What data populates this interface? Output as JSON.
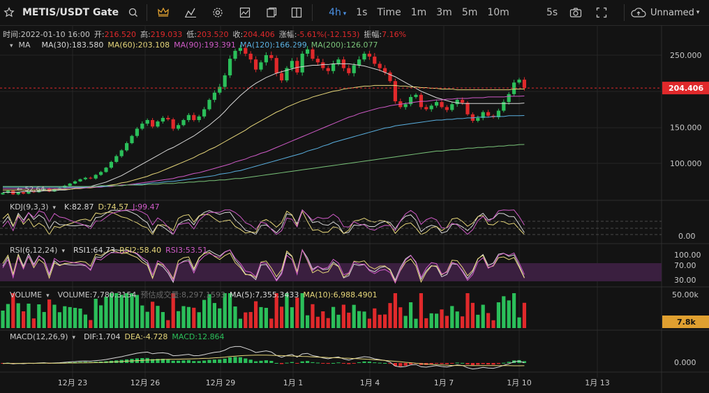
{
  "toolbar": {
    "symbol": "METIS/USDT Gate",
    "timeframes": [
      "4h",
      "1s",
      "Time",
      "1m",
      "3m",
      "5m",
      "10m"
    ],
    "active_timeframe": "4h",
    "interval_select": "5s",
    "layout_name": "Unnamed"
  },
  "ohlc_bar": {
    "time": "时间:2022-01-10 16:00",
    "open_label": "开:",
    "open": "216.520",
    "high_label": "高:",
    "high": "219.033",
    "low_label": "低:",
    "low": "203.520",
    "close_label": "收:",
    "close": "204.406",
    "change_label": "涨幅:",
    "change": "-5.61%(-12.153)",
    "amp_label": "振幅:",
    "amp": "7.16%"
  },
  "ma_legend": {
    "name": "MA",
    "items": [
      {
        "label": "MA(30):183.580",
        "color": "#d8d8d8"
      },
      {
        "label": "MA(60):203.108",
        "color": "#e6d67a"
      },
      {
        "label": "MA(90):193.391",
        "color": "#d05bc8"
      },
      {
        "label": "MA(120):166.299",
        "color": "#5ab0e0"
      },
      {
        "label": "MA(200):126.077",
        "color": "#7ac47a"
      }
    ]
  },
  "kdj_legend": {
    "name": "KDJ(9,3,3)",
    "k": "K:82.87",
    "d": "D:74.57",
    "j": "J:99.47"
  },
  "rsi_legend": {
    "name": "RSI(6,12,24)",
    "r1": "RSI1:64.73",
    "r2": "RSI2:58.40",
    "r3": "RSI3:53.51"
  },
  "vol_legend": {
    "name": "VOLUME",
    "vol": "VOLUME:7,780.3154",
    "est": "预估成交量:8,297.1593",
    "ma5": "MA(5):7,355.3433",
    "ma10": "MA(10):6,988.4901"
  },
  "macd_legend": {
    "name": "MACD(12,26,9)",
    "dif": "DIF:1.704",
    "dea": "DEA:-4.728",
    "macd": "MACD:12.864"
  },
  "axes": {
    "price_ticks": [
      "250.000",
      "204.406",
      "150.000",
      "100.000"
    ],
    "last_price": "204.406",
    "kdj_tick": "0.00",
    "rsi_ticks": [
      "100.00",
      "70.00",
      "30.00"
    ],
    "vol_tick": "50.00k",
    "vol_last": "7.8k",
    "macd_tick": "0.000",
    "x_ticks": [
      "12月 23",
      "12月 26",
      "12月 29",
      "1月 1",
      "1月 4",
      "1月 7",
      "1月 10",
      "1月 13"
    ],
    "low_marker": "52.64"
  },
  "colors": {
    "up": "#2bbf5a",
    "down": "#e0292b",
    "bg": "#131313",
    "grid": "#262626",
    "accent": "#4a90e2"
  },
  "chart_data": {
    "type": "candlestick",
    "x_tick_labels": [
      "12月 23",
      "12月 26",
      "12月 29",
      "1月 1",
      "1月 4",
      "1月 7",
      "1月 10",
      "1月 13"
    ],
    "price_range": [
      50,
      270
    ],
    "last_close": 204.406,
    "close": [
      59,
      62,
      57,
      60,
      58,
      61,
      60,
      63,
      65,
      61,
      64,
      66,
      69,
      72,
      75,
      78,
      80,
      79,
      84,
      88,
      94,
      102,
      110,
      118,
      128,
      138,
      148,
      155,
      160,
      151,
      158,
      163,
      161,
      148,
      153,
      160,
      167,
      160,
      165,
      175,
      188,
      198,
      206,
      222,
      245,
      256,
      260,
      252,
      244,
      230,
      240,
      250,
      246,
      225,
      215,
      232,
      242,
      226,
      252,
      258,
      245,
      240,
      232,
      228,
      238,
      244,
      232,
      225,
      236,
      244,
      252,
      248,
      238,
      232,
      226,
      214,
      186,
      178,
      182,
      192,
      195,
      178,
      175,
      180,
      185,
      178,
      174,
      182,
      188,
      184,
      168,
      159,
      163,
      171,
      166,
      164,
      173,
      185,
      196,
      212,
      216,
      204.4
    ],
    "ma30": [
      60,
      60,
      60,
      60,
      61,
      61,
      61,
      61,
      62,
      62,
      62,
      63,
      63,
      64,
      65,
      66,
      67,
      68,
      70,
      72,
      74,
      77,
      80,
      83,
      87,
      91,
      95,
      99,
      103,
      107,
      111,
      115,
      119,
      122,
      126,
      130,
      134,
      138,
      143,
      148,
      153,
      159,
      165,
      172,
      180,
      187,
      194,
      200,
      206,
      211,
      215,
      219,
      222,
      225,
      227,
      229,
      231,
      233,
      234,
      235,
      236,
      236,
      237,
      237,
      238,
      238,
      238,
      238,
      237,
      236,
      235,
      233,
      231,
      229,
      226,
      223,
      220,
      216,
      212,
      208,
      204,
      200,
      197,
      194,
      191,
      189,
      187,
      185,
      184,
      183,
      183,
      183,
      183,
      183,
      183,
      183,
      183,
      183,
      183,
      183,
      183,
      183.6
    ],
    "ma60": [
      63,
      63,
      63,
      63,
      63,
      63,
      63,
      63,
      63,
      63,
      64,
      64,
      64,
      64,
      65,
      65,
      66,
      66,
      67,
      68,
      69,
      70,
      71,
      73,
      74,
      76,
      78,
      80,
      82,
      85,
      87,
      90,
      93,
      96,
      99,
      102,
      105,
      108,
      112,
      115,
      119,
      122,
      126,
      130,
      134,
      138,
      142,
      146,
      151,
      155,
      159,
      163,
      167,
      171,
      174,
      178,
      181,
      184,
      187,
      189,
      192,
      194,
      196,
      198,
      200,
      201,
      203,
      204,
      205,
      206,
      207,
      207,
      208,
      208,
      208,
      208,
      208,
      207,
      207,
      206,
      206,
      205,
      205,
      204,
      204,
      203,
      203,
      203,
      202,
      202,
      202,
      202,
      202,
      202,
      202,
      202,
      202,
      202,
      202,
      203,
      203,
      203.1
    ],
    "ma90": [
      65,
      65,
      65,
      65,
      65,
      65,
      65,
      65,
      65,
      65,
      65,
      65,
      65,
      66,
      66,
      66,
      66,
      67,
      67,
      67,
      68,
      68,
      69,
      70,
      70,
      71,
      72,
      73,
      74,
      75,
      76,
      77,
      78,
      79,
      81,
      82,
      84,
      86,
      87,
      89,
      91,
      93,
      95,
      97,
      99,
      102,
      104,
      106,
      109,
      111,
      114,
      116,
      119,
      122,
      125,
      128,
      131,
      134,
      137,
      140,
      143,
      146,
      149,
      152,
      155,
      158,
      161,
      164,
      166,
      169,
      171,
      173,
      175,
      177,
      178,
      180,
      181,
      182,
      183,
      184,
      185,
      186,
      186,
      187,
      188,
      188,
      189,
      189,
      190,
      190,
      190,
      191,
      191,
      191,
      192,
      192,
      192,
      192,
      193,
      193,
      193,
      193.4
    ],
    "ma120": [
      67,
      67,
      67,
      67,
      67,
      67,
      67,
      67,
      67,
      67,
      67,
      67,
      67,
      67,
      67,
      67,
      67,
      68,
      68,
      68,
      68,
      69,
      69,
      69,
      70,
      70,
      71,
      71,
      72,
      73,
      73,
      74,
      75,
      75,
      76,
      77,
      78,
      79,
      80,
      81,
      82,
      83,
      85,
      86,
      87,
      89,
      90,
      92,
      94,
      96,
      98,
      100,
      102,
      104,
      106,
      108,
      110,
      112,
      114,
      117,
      119,
      121,
      124,
      126,
      129,
      131,
      133,
      135,
      137,
      139,
      141,
      143,
      145,
      147,
      149,
      150,
      152,
      153,
      154,
      155,
      156,
      157,
      158,
      159,
      160,
      160,
      161,
      161,
      162,
      162,
      163,
      163,
      164,
      164,
      164,
      165,
      165,
      165,
      166,
      166,
      166,
      166.3
    ],
    "ma200": [
      68,
      68,
      68,
      68,
      68,
      68,
      68,
      68,
      68,
      68,
      68,
      68,
      68,
      68,
      68,
      68,
      68,
      68,
      68,
      69,
      69,
      69,
      69,
      69,
      70,
      70,
      70,
      70,
      71,
      71,
      71,
      72,
      72,
      72,
      73,
      73,
      74,
      74,
      75,
      75,
      76,
      76,
      77,
      77,
      78,
      79,
      79,
      80,
      81,
      82,
      83,
      84,
      85,
      86,
      87,
      88,
      89,
      90,
      91,
      92,
      93,
      94,
      95,
      96,
      97,
      98,
      99,
      100,
      101,
      102,
      103,
      104,
      105,
      106,
      107,
      108,
      109,
      110,
      111,
      112,
      113,
      114,
      115,
      116,
      117,
      117,
      118,
      119,
      119,
      120,
      121,
      121,
      122,
      122,
      123,
      123,
      124,
      124,
      125,
      125,
      126,
      126.1
    ],
    "kdj_k": 82.87,
    "kdj_d": 74.57,
    "kdj_j": 99.47,
    "rsi1": 64.73,
    "rsi2": 58.4,
    "rsi3": 53.51,
    "volume": 7780.3154,
    "volume_est": 8297.1593,
    "vol_ma5": 7355.3433,
    "vol_ma10": 6988.4901,
    "macd_dif": 1.704,
    "macd_dea": -4.728,
    "macd_hist": 12.864
  }
}
